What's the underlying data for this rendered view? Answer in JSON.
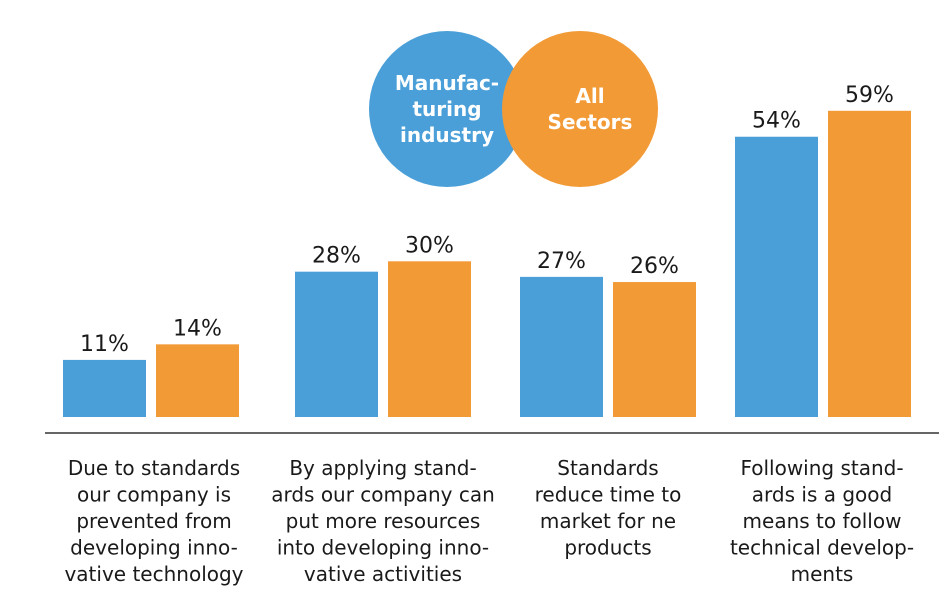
{
  "chart_data": {
    "type": "bar",
    "title": "",
    "xlabel": "",
    "ylabel": "",
    "ylim": [
      0,
      60
    ],
    "grid": false,
    "legend_position": "top-center",
    "value_suffix": "%",
    "categories": [
      [
        "Due to standards",
        "our company is",
        "prevented from",
        "developing inno-",
        "vative technology"
      ],
      [
        "By applying stand-",
        "ards our company can",
        "put more resources",
        "into developing inno-",
        "vative activities"
      ],
      [
        "Standards",
        "reduce time to",
        "market for ne",
        "products"
      ],
      [
        "Following stand-",
        "ards is a good",
        "means to follow",
        "technical develop-",
        "ments"
      ]
    ],
    "series": [
      {
        "name": [
          "Manufac-",
          "turing",
          "industry"
        ],
        "color": "#4a9fd8",
        "values": [
          11,
          28,
          27,
          54
        ]
      },
      {
        "name": [
          "All",
          "Sectors"
        ],
        "color": "#f29a36",
        "values": [
          14,
          30,
          26,
          59
        ]
      }
    ]
  }
}
